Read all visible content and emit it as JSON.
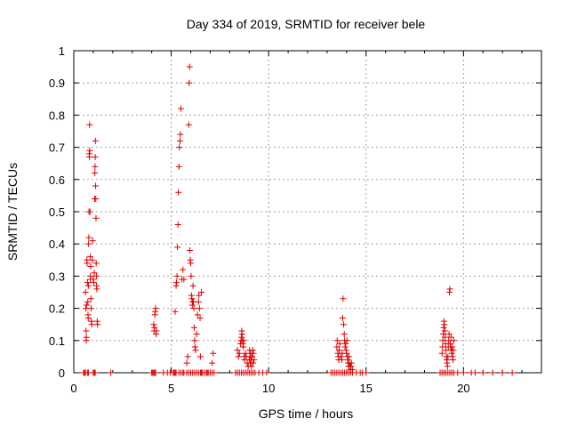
{
  "chart_data": {
    "type": "scatter",
    "title": "Day 334 of 2019, SRMTID for receiver bele",
    "xlabel": "GPS time / hours",
    "ylabel": "SRMTID / TECUs",
    "xlim": [
      0,
      24
    ],
    "ylim": [
      0,
      1
    ],
    "x_ticks": [
      0,
      5,
      10,
      15,
      20
    ],
    "y_ticks": [
      0,
      0.1,
      0.2,
      0.3,
      0.4,
      0.5,
      0.6,
      0.7,
      0.8,
      0.9,
      1
    ],
    "x_tick_labels": [
      "0",
      "5",
      "10",
      "15",
      "20"
    ],
    "y_tick_labels": [
      "0",
      "0.1",
      "0.2",
      "0.3",
      "0.4",
      "0.5",
      "0.6",
      "0.7",
      "0.8",
      "0.9",
      "1"
    ],
    "grid": true,
    "marker": "+",
    "color": "#e00000",
    "series": [
      {
        "name": "SRMTID",
        "points": [
          [
            0.5,
            0
          ],
          [
            0.55,
            0
          ],
          [
            0.6,
            0
          ],
          [
            0.7,
            0
          ],
          [
            0.75,
            0
          ],
          [
            1.0,
            0
          ],
          [
            1.05,
            0
          ],
          [
            1.1,
            0
          ],
          [
            1.9,
            0
          ],
          [
            0.6,
            0.25
          ],
          [
            0.62,
            0.2
          ],
          [
            0.63,
            0.13
          ],
          [
            0.64,
            0.1
          ],
          [
            0.65,
            0.11
          ],
          [
            0.66,
            0.21
          ],
          [
            0.67,
            0.35
          ],
          [
            0.68,
            0.34
          ],
          [
            0.7,
            0.28
          ],
          [
            0.72,
            0.22
          ],
          [
            0.73,
            0.18
          ],
          [
            0.74,
            0.17
          ],
          [
            0.75,
            0.27
          ],
          [
            0.76,
            0.4
          ],
          [
            0.77,
            0.42
          ],
          [
            0.78,
            0.5
          ],
          [
            0.79,
            0.68
          ],
          [
            0.8,
            0.67
          ],
          [
            0.81,
            0.77
          ],
          [
            0.82,
            0.69
          ],
          [
            0.83,
            0.5
          ],
          [
            0.84,
            0.36
          ],
          [
            0.85,
            0.29
          ],
          [
            0.86,
            0.3
          ],
          [
            0.87,
            0.33
          ],
          [
            0.88,
            0.23
          ],
          [
            0.89,
            0.2
          ],
          [
            0.9,
            0.16
          ],
          [
            0.92,
            0.15
          ],
          [
            0.95,
            0.35
          ],
          [
            0.97,
            0.41
          ],
          [
            1.0,
            0.29
          ],
          [
            1.02,
            0.28
          ],
          [
            1.05,
            0.31
          ],
          [
            1.07,
            0.54
          ],
          [
            1.08,
            0.62
          ],
          [
            1.09,
            0.64
          ],
          [
            1.1,
            0.67
          ],
          [
            1.11,
            0.72
          ],
          [
            1.12,
            0.58
          ],
          [
            1.13,
            0.54
          ],
          [
            1.14,
            0.48
          ],
          [
            1.15,
            0.34
          ],
          [
            1.16,
            0.3
          ],
          [
            1.17,
            0.27
          ],
          [
            1.18,
            0.26
          ],
          [
            1.2,
            0.16
          ],
          [
            1.22,
            0.15
          ],
          [
            4.0,
            0
          ],
          [
            4.05,
            0
          ],
          [
            4.1,
            0
          ],
          [
            4.15,
            0
          ],
          [
            4.2,
            0
          ],
          [
            4.6,
            0
          ],
          [
            4.8,
            0
          ],
          [
            4.95,
            0
          ],
          [
            5.1,
            0
          ],
          [
            5.15,
            0
          ],
          [
            5.2,
            0
          ],
          [
            5.25,
            0
          ],
          [
            5.4,
            0
          ],
          [
            5.5,
            0
          ],
          [
            5.6,
            0
          ],
          [
            5.65,
            0
          ],
          [
            5.8,
            0
          ],
          [
            5.9,
            0
          ],
          [
            6.0,
            0
          ],
          [
            6.1,
            0
          ],
          [
            6.2,
            0
          ],
          [
            6.3,
            0
          ],
          [
            6.4,
            0
          ],
          [
            6.5,
            0
          ],
          [
            6.55,
            0
          ],
          [
            6.6,
            0
          ],
          [
            6.7,
            0
          ],
          [
            6.8,
            0
          ],
          [
            6.85,
            0
          ],
          [
            6.9,
            0
          ],
          [
            7.0,
            0
          ],
          [
            7.1,
            0
          ],
          [
            7.2,
            0
          ],
          [
            4.1,
            0.15
          ],
          [
            4.12,
            0.13
          ],
          [
            4.14,
            0.14
          ],
          [
            4.16,
            0.18
          ],
          [
            4.18,
            0.19
          ],
          [
            4.2,
            0.2
          ],
          [
            4.22,
            0.12
          ],
          [
            4.24,
            0.13
          ],
          [
            5.2,
            0.19
          ],
          [
            5.25,
            0.27
          ],
          [
            5.27,
            0.28
          ],
          [
            5.3,
            0.3
          ],
          [
            5.32,
            0.39
          ],
          [
            5.35,
            0.46
          ],
          [
            5.37,
            0.56
          ],
          [
            5.4,
            0.64
          ],
          [
            5.42,
            0.7
          ],
          [
            5.45,
            0.72
          ],
          [
            5.47,
            0.74
          ],
          [
            5.5,
            0.82
          ],
          [
            5.55,
            0.29
          ],
          [
            5.6,
            0.32
          ],
          [
            5.65,
            0.29
          ],
          [
            5.8,
            0.03
          ],
          [
            5.85,
            0.05
          ],
          [
            5.9,
            0.77
          ],
          [
            5.92,
            0.9
          ],
          [
            5.94,
            0.95
          ],
          [
            5.96,
            0.38
          ],
          [
            5.98,
            0.35
          ],
          [
            6.0,
            0.34
          ],
          [
            6.02,
            0.3
          ],
          [
            6.04,
            0.24
          ],
          [
            6.06,
            0.23
          ],
          [
            6.08,
            0.21
          ],
          [
            6.1,
            0.22
          ],
          [
            6.12,
            0.27
          ],
          [
            6.14,
            0.22
          ],
          [
            6.16,
            0.2
          ],
          [
            6.18,
            0.14
          ],
          [
            6.2,
            0.1
          ],
          [
            6.22,
            0.08
          ],
          [
            6.25,
            0.07
          ],
          [
            6.3,
            0.12
          ],
          [
            6.35,
            0.18
          ],
          [
            6.4,
            0.22
          ],
          [
            6.42,
            0.24
          ],
          [
            6.45,
            0.2
          ],
          [
            6.48,
            0.17
          ],
          [
            6.5,
            0.05
          ],
          [
            6.55,
            0.25
          ],
          [
            7.1,
            0.03
          ],
          [
            7.15,
            0.06
          ],
          [
            8.3,
            0
          ],
          [
            8.4,
            0
          ],
          [
            8.5,
            0
          ],
          [
            8.6,
            0
          ],
          [
            8.7,
            0
          ],
          [
            8.8,
            0
          ],
          [
            8.9,
            0
          ],
          [
            9.0,
            0
          ],
          [
            9.1,
            0
          ],
          [
            9.2,
            0
          ],
          [
            9.3,
            0
          ],
          [
            9.5,
            0
          ],
          [
            9.7,
            0
          ],
          [
            9.9,
            0
          ],
          [
            8.4,
            0.07
          ],
          [
            8.45,
            0.05
          ],
          [
            8.5,
            0.06
          ],
          [
            8.55,
            0.09
          ],
          [
            8.58,
            0.1
          ],
          [
            8.6,
            0.11
          ],
          [
            8.62,
            0.13
          ],
          [
            8.64,
            0.12
          ],
          [
            8.66,
            0.1
          ],
          [
            8.68,
            0.09
          ],
          [
            8.7,
            0.08
          ],
          [
            8.72,
            0.1
          ],
          [
            8.74,
            0.05
          ],
          [
            8.76,
            0.04
          ],
          [
            8.8,
            0.06
          ],
          [
            8.85,
            0.05
          ],
          [
            8.9,
            0.03
          ],
          [
            8.95,
            0.02
          ],
          [
            9.0,
            0.04
          ],
          [
            9.02,
            0.07
          ],
          [
            9.04,
            0.05
          ],
          [
            9.06,
            0.03
          ],
          [
            9.08,
            0.06
          ],
          [
            9.1,
            0.04
          ],
          [
            9.12,
            0.02
          ],
          [
            9.15,
            0.05
          ],
          [
            9.18,
            0.07
          ],
          [
            9.2,
            0.03
          ],
          [
            9.22,
            0.06
          ],
          [
            9.25,
            0.04
          ],
          [
            13.2,
            0
          ],
          [
            13.3,
            0
          ],
          [
            13.4,
            0
          ],
          [
            13.5,
            0
          ],
          [
            13.6,
            0
          ],
          [
            13.7,
            0
          ],
          [
            13.8,
            0
          ],
          [
            13.9,
            0
          ],
          [
            14.0,
            0
          ],
          [
            14.1,
            0
          ],
          [
            14.2,
            0
          ],
          [
            14.3,
            0
          ],
          [
            14.5,
            0
          ],
          [
            14.7,
            0
          ],
          [
            14.8,
            0
          ],
          [
            15.0,
            0
          ],
          [
            13.5,
            0.08
          ],
          [
            13.52,
            0.1
          ],
          [
            13.55,
            0.06
          ],
          [
            13.58,
            0.05
          ],
          [
            13.6,
            0.04
          ],
          [
            13.62,
            0.07
          ],
          [
            13.65,
            0.09
          ],
          [
            13.7,
            0.05
          ],
          [
            13.75,
            0.04
          ],
          [
            13.78,
            0.06
          ],
          [
            13.8,
            0.17
          ],
          [
            13.82,
            0.23
          ],
          [
            13.85,
            0.15
          ],
          [
            13.88,
            0.12
          ],
          [
            13.9,
            0.1
          ],
          [
            13.92,
            0.08
          ],
          [
            13.95,
            0.09
          ],
          [
            13.98,
            0.07
          ],
          [
            14.0,
            0.06
          ],
          [
            14.02,
            0.1
          ],
          [
            14.04,
            0.05
          ],
          [
            14.06,
            0.04
          ],
          [
            14.08,
            0.03
          ],
          [
            14.1,
            0.02
          ],
          [
            14.12,
            0.05
          ],
          [
            14.15,
            0.03
          ],
          [
            14.18,
            0.02
          ],
          [
            14.2,
            0.01
          ],
          [
            14.22,
            0.02
          ],
          [
            14.25,
            0.03
          ],
          [
            14.3,
            0.01
          ],
          [
            18.8,
            0
          ],
          [
            18.9,
            0
          ],
          [
            19.0,
            0
          ],
          [
            19.1,
            0
          ],
          [
            19.2,
            0
          ],
          [
            19.3,
            0
          ],
          [
            19.4,
            0
          ],
          [
            19.5,
            0
          ],
          [
            19.7,
            0
          ],
          [
            20.0,
            0
          ],
          [
            20.4,
            0
          ],
          [
            20.6,
            0
          ],
          [
            21.0,
            0
          ],
          [
            21.5,
            0
          ],
          [
            22.0,
            0
          ],
          [
            22.5,
            0
          ],
          [
            18.9,
            0.06
          ],
          [
            18.92,
            0.08
          ],
          [
            18.94,
            0.1
          ],
          [
            18.96,
            0.12
          ],
          [
            18.98,
            0.14
          ],
          [
            19.0,
            0.16
          ],
          [
            19.02,
            0.15
          ],
          [
            19.04,
            0.13
          ],
          [
            19.06,
            0.11
          ],
          [
            19.08,
            0.09
          ],
          [
            19.1,
            0.07
          ],
          [
            19.12,
            0.05
          ],
          [
            19.14,
            0.04
          ],
          [
            19.16,
            0.03
          ],
          [
            19.18,
            0.02
          ],
          [
            19.2,
            0.05
          ],
          [
            19.22,
            0.08
          ],
          [
            19.24,
            0.1
          ],
          [
            19.26,
            0.12
          ],
          [
            19.28,
            0.25
          ],
          [
            19.3,
            0.26
          ],
          [
            19.32,
            0.09
          ],
          [
            19.34,
            0.08
          ],
          [
            19.36,
            0.11
          ],
          [
            19.38,
            0.07
          ],
          [
            19.4,
            0.06
          ],
          [
            19.42,
            0.08
          ],
          [
            19.44,
            0.05
          ],
          [
            19.46,
            0.04
          ],
          [
            19.48,
            0.07
          ],
          [
            19.5,
            0.1
          ]
        ]
      }
    ]
  }
}
